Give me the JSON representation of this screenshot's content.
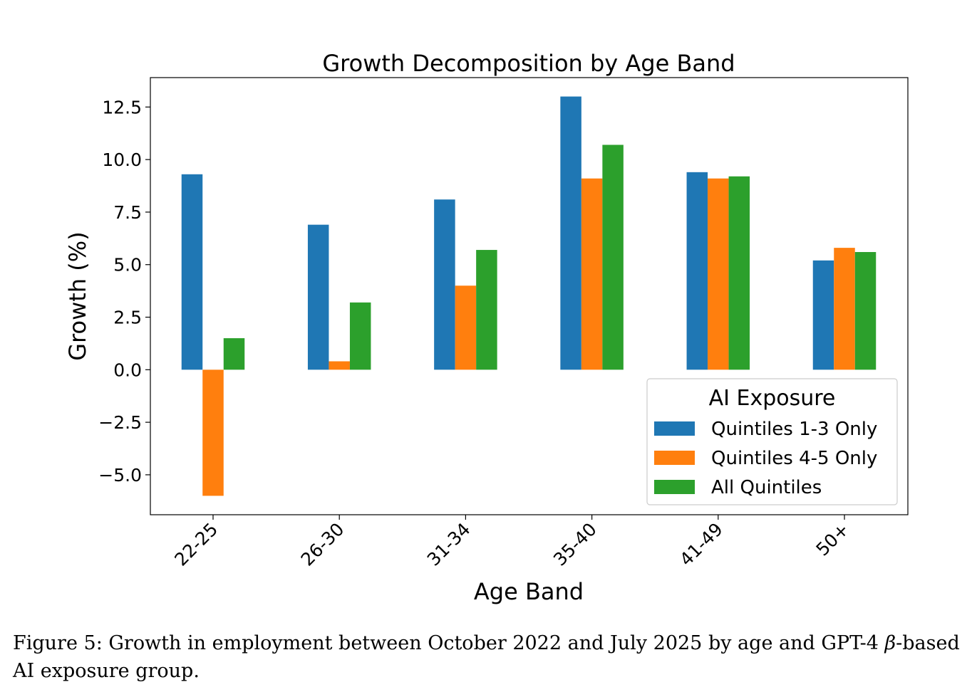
{
  "chart_data": {
    "type": "bar",
    "title": "Growth Decomposition by Age Band",
    "xlabel": "Age Band",
    "ylabel": "Growth (%)",
    "ylim": [
      -6.9,
      13.9
    ],
    "yticks": [
      "−5.0",
      "−2.5",
      "0.0",
      "2.5",
      "5.0",
      "7.5",
      "10.0",
      "12.5"
    ],
    "ytick_values": [
      -5.0,
      -2.5,
      0.0,
      2.5,
      5.0,
      7.5,
      10.0,
      12.5
    ],
    "categories": [
      "22-25",
      "26-30",
      "31-34",
      "35-40",
      "41-49",
      "50+"
    ],
    "series": [
      {
        "name": "Quintiles 1-3 Only",
        "color": "#1f77b4",
        "values": [
          9.3,
          6.9,
          8.1,
          13.0,
          9.4,
          5.2
        ]
      },
      {
        "name": "Quintiles 4-5 Only",
        "color": "#ff7f0e",
        "values": [
          -6.0,
          0.4,
          4.0,
          9.1,
          9.1,
          5.8
        ]
      },
      {
        "name": "All Quintiles",
        "color": "#2ca02c",
        "values": [
          1.5,
          3.2,
          5.7,
          10.7,
          9.2,
          5.6
        ]
      }
    ],
    "legend": {
      "title": "AI Exposure",
      "position": "lower-right"
    }
  },
  "caption": {
    "prefix": "Figure 5: Growth in employment between October 2022 and July 2025 by age and GPT-4 ",
    "symbol": "β",
    "suffix": "-based AI exposure group."
  }
}
